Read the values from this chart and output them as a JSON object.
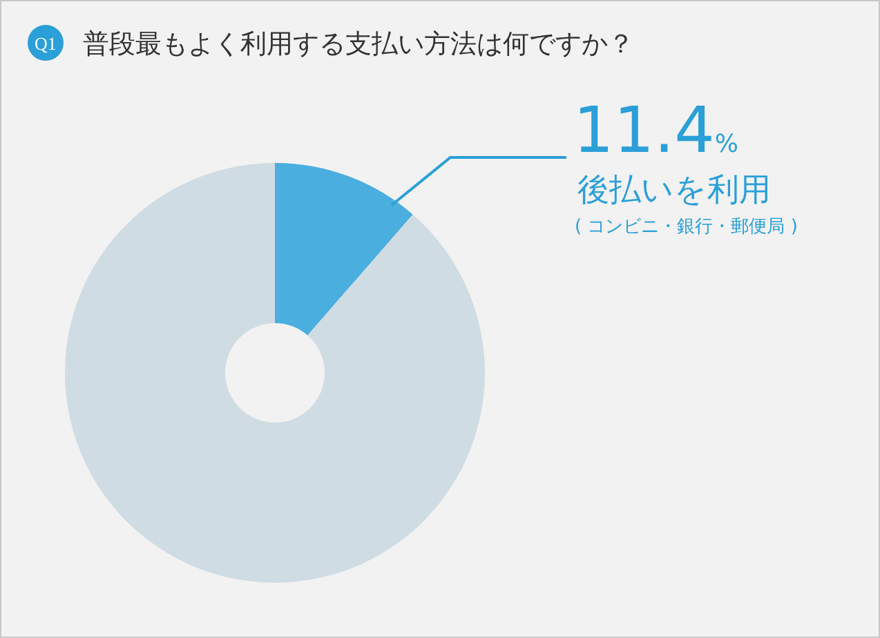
{
  "chart_data": {
    "type": "donut",
    "title": "普段最もよく利用する支払い方法は何ですか？",
    "subtitle": "Q1",
    "categories": [
      "後払いを利用",
      null
    ],
    "values": [
      11.4,
      88.6
    ],
    "colors": [
      "#4aaedf",
      "#d0dce3"
    ],
    "value_labels": [
      "11.4%",
      null
    ],
    "annotations": [
      "( コンビニ・銀行・郵便局 )"
    ]
  }
}
